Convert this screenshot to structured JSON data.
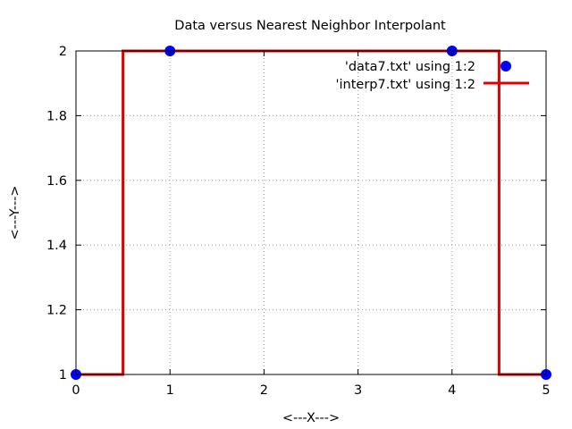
{
  "chart_data": {
    "type": "line",
    "title": "Data versus Nearest Neighbor Interpolant",
    "xlabel": "<---X--->",
    "ylabel": "<---Y--->",
    "xlim": [
      0,
      5
    ],
    "ylim": [
      1,
      2
    ],
    "xticks": [
      0,
      1,
      2,
      3,
      4,
      5
    ],
    "xtick_labels": [
      "0",
      "1",
      "2",
      "3",
      "4",
      "5"
    ],
    "yticks": [
      1,
      1.2,
      1.4,
      1.6,
      1.8,
      2
    ],
    "ytick_labels": [
      "1",
      "1.2",
      "1.4",
      "1.6",
      "1.8",
      "2"
    ],
    "grid": true,
    "legend_position": "top-right",
    "series": [
      {
        "name": "'data7.txt' using 1:2",
        "kind": "points",
        "color": "#0000ff",
        "x": [
          0,
          1,
          4,
          5
        ],
        "y": [
          1,
          2,
          2,
          1
        ]
      },
      {
        "name": "'interp7.txt' using 1:2",
        "kind": "line",
        "color": "#e00000",
        "x": [
          0,
          0.5,
          0.5,
          4.5,
          4.5,
          5
        ],
        "y": [
          1,
          1,
          2,
          2,
          1,
          1
        ]
      }
    ]
  }
}
